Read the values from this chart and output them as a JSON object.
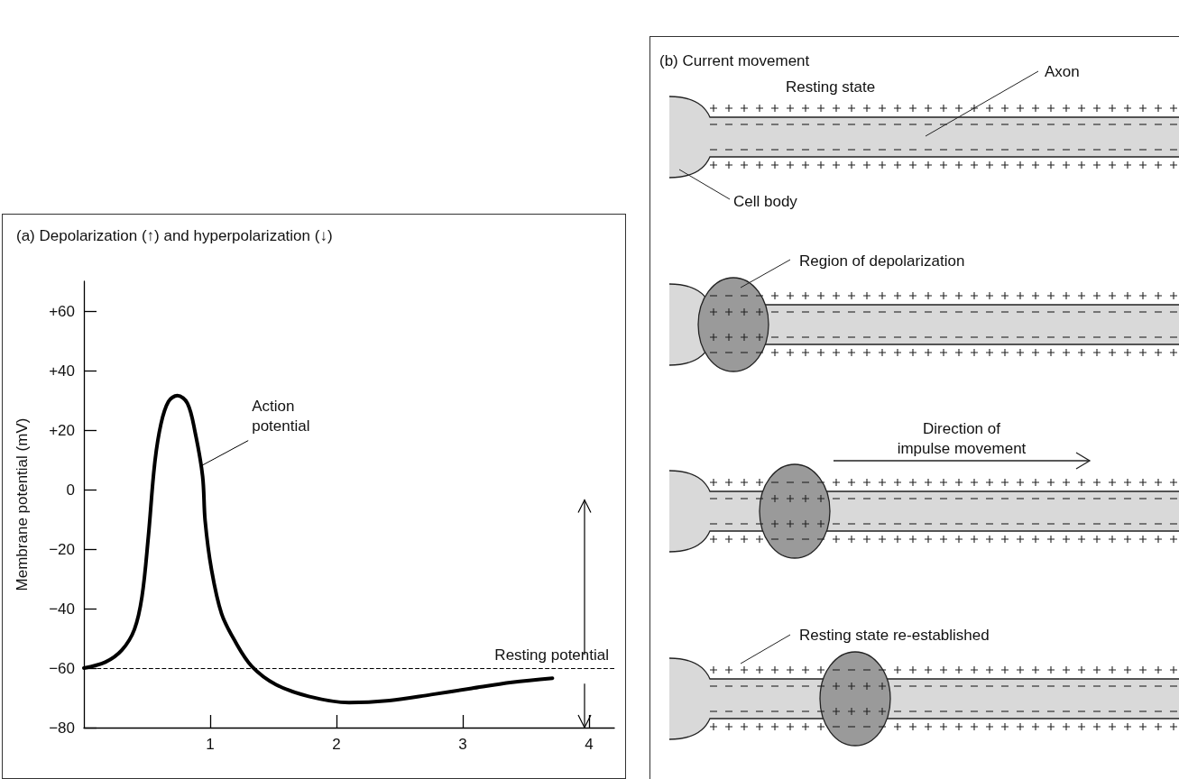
{
  "chart_data": [
    {
      "type": "line",
      "title": "(a) Depolarization (↑) and hyperpolarization (↓)",
      "ylabel": "Membrane potential (mV)",
      "x": [
        0,
        0.17,
        0.3,
        0.4,
        0.46,
        0.51,
        0.56,
        0.61,
        0.67,
        0.74,
        0.82,
        0.88,
        0.94,
        0.96,
        1.01,
        1.09,
        1.2,
        1.33,
        1.52,
        1.78,
        2.1,
        2.42,
        2.75,
        3.07,
        3.39,
        3.71
      ],
      "series": [
        {
          "color": "#000000",
          "values": [
            -60,
            -58,
            -54,
            -47,
            -36,
            -16,
            8.5,
            22,
            29.6,
            31.6,
            29,
            19.4,
            4.5,
            -10.5,
            -26.8,
            -41.7,
            -51.2,
            -59.4,
            -65.5,
            -69.5,
            -71.6,
            -70.9,
            -68.9,
            -66.8,
            -64.8,
            -63.4
          ]
        }
      ],
      "xlim": [
        0,
        4.2
      ],
      "xticks": [
        1,
        2,
        3,
        4
      ],
      "ylim": [
        -80,
        70
      ],
      "yticks": [
        {
          "value": -80,
          "label": "−80"
        },
        {
          "value": -60,
          "label": "−60"
        },
        {
          "value": -40,
          "label": "−40"
        },
        {
          "value": -20,
          "label": "−20"
        },
        0,
        {
          "value": 20,
          "label": "+20"
        },
        {
          "value": 40,
          "label": "+40"
        },
        {
          "value": 60,
          "label": "+60"
        }
      ],
      "ref_lines": [
        {
          "axis": "y",
          "value": -60,
          "label": "Resting potential",
          "line_style": "dashed",
          "color": "#000000"
        }
      ],
      "annotations": [
        {
          "text": "Action potential",
          "x": 0.93,
          "y": 8
        }
      ],
      "marker": "none",
      "line_style": "solid",
      "grid": false
    },
    {
      "type": "other",
      "title": "(b) Current movement",
      "annotations": [
        "Resting state",
        "Axon",
        "Cell body",
        "Region of depolarization",
        "Direction of\nimpulse movement",
        "Resting state re-established"
      ]
    }
  ]
}
